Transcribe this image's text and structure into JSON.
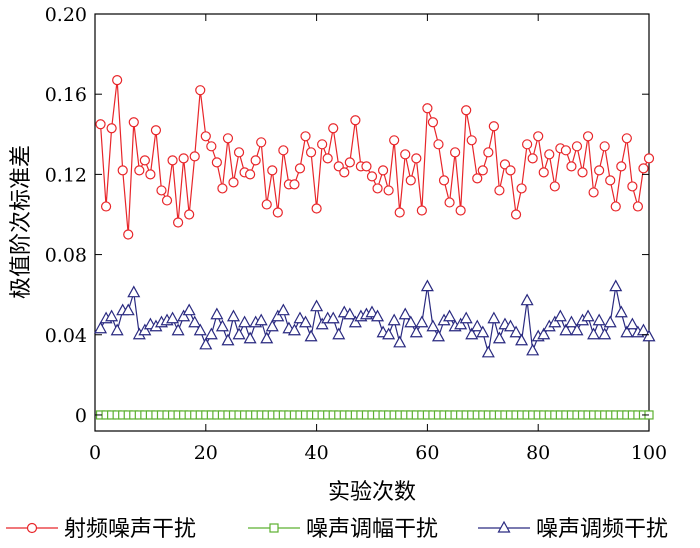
{
  "chart_data": {
    "type": "line",
    "title": "",
    "xlabel": "实验次数",
    "ylabel": "极值阶次标准差",
    "xlim": [
      0,
      100
    ],
    "ylim": [
      -0.008,
      0.2
    ],
    "grid": false,
    "legend_position": "bottom",
    "x_ticks": [
      0,
      20,
      40,
      60,
      80,
      100
    ],
    "y_ticks": [
      0,
      0.04,
      0.08,
      0.12,
      0.16,
      0.2
    ],
    "x_tick_labels": [
      "0",
      "20",
      "40",
      "60",
      "80",
      "100"
    ],
    "y_tick_labels": [
      "0",
      "0.04",
      "0.08",
      "0.12",
      "0.16",
      "0.20"
    ],
    "x": [
      1,
      2,
      3,
      4,
      5,
      6,
      7,
      8,
      9,
      10,
      11,
      12,
      13,
      14,
      15,
      16,
      17,
      18,
      19,
      20,
      21,
      22,
      23,
      24,
      25,
      26,
      27,
      28,
      29,
      30,
      31,
      32,
      33,
      34,
      35,
      36,
      37,
      38,
      39,
      40,
      41,
      42,
      43,
      44,
      45,
      46,
      47,
      48,
      49,
      50,
      51,
      52,
      53,
      54,
      55,
      56,
      57,
      58,
      59,
      60,
      61,
      62,
      63,
      64,
      65,
      66,
      67,
      68,
      69,
      70,
      71,
      72,
      73,
      74,
      75,
      76,
      77,
      78,
      79,
      80,
      81,
      82,
      83,
      84,
      85,
      86,
      87,
      88,
      89,
      90,
      91,
      92,
      93,
      94,
      95,
      96,
      97,
      98,
      99,
      100
    ],
    "series": [
      {
        "name": "射频噪声干扰",
        "color": "#e8262a",
        "marker": "circle",
        "values": [
          0.145,
          0.104,
          0.143,
          0.167,
          0.122,
          0.09,
          0.146,
          0.122,
          0.127,
          0.12,
          0.142,
          0.112,
          0.107,
          0.127,
          0.096,
          0.128,
          0.1,
          0.129,
          0.162,
          0.139,
          0.134,
          0.126,
          0.113,
          0.138,
          0.116,
          0.131,
          0.121,
          0.12,
          0.127,
          0.136,
          0.105,
          0.122,
          0.101,
          0.132,
          0.115,
          0.115,
          0.123,
          0.139,
          0.131,
          0.103,
          0.135,
          0.128,
          0.143,
          0.124,
          0.121,
          0.126,
          0.147,
          0.124,
          0.124,
          0.119,
          0.113,
          0.122,
          0.112,
          0.137,
          0.101,
          0.13,
          0.117,
          0.128,
          0.102,
          0.153,
          0.146,
          0.135,
          0.117,
          0.106,
          0.131,
          0.102,
          0.152,
          0.137,
          0.118,
          0.122,
          0.131,
          0.144,
          0.112,
          0.125,
          0.122,
          0.1,
          0.113,
          0.135,
          0.128,
          0.139,
          0.121,
          0.13,
          0.114,
          0.133,
          0.132,
          0.124,
          0.134,
          0.121,
          0.139,
          0.111,
          0.122,
          0.134,
          0.117,
          0.104,
          0.124,
          0.138,
          0.114,
          0.104,
          0.123,
          0.128
        ]
      },
      {
        "name": "噪声调幅干扰",
        "color": "#5cb030",
        "marker": "square",
        "values": [
          0,
          0,
          0,
          0,
          0,
          0,
          0,
          0,
          0,
          0,
          0,
          0,
          0,
          0,
          0,
          0,
          0,
          0,
          0,
          0,
          0,
          0,
          0,
          0,
          0,
          0,
          0,
          0,
          0,
          0,
          0,
          0,
          0,
          0,
          0,
          0,
          0,
          0,
          0,
          0,
          0,
          0,
          0,
          0,
          0,
          0,
          0,
          0,
          0,
          0,
          0,
          0,
          0,
          0,
          0,
          0,
          0,
          0,
          0,
          0,
          0,
          0,
          0,
          0,
          0,
          0,
          0,
          0,
          0,
          0,
          0,
          0,
          0,
          0,
          0,
          0,
          0,
          0,
          0,
          0,
          0,
          0,
          0,
          0,
          0,
          0,
          0,
          0,
          0,
          0,
          0,
          0,
          0,
          0,
          0,
          0,
          0,
          0,
          0,
          0
        ]
      },
      {
        "name": "噪声调频干扰",
        "color": "#2a2a80",
        "marker": "triangle",
        "values": [
          0.043,
          0.048,
          0.049,
          0.042,
          0.052,
          0.052,
          0.061,
          0.04,
          0.042,
          0.045,
          0.044,
          0.046,
          0.047,
          0.048,
          0.042,
          0.049,
          0.052,
          0.046,
          0.042,
          0.035,
          0.04,
          0.05,
          0.044,
          0.037,
          0.049,
          0.04,
          0.046,
          0.038,
          0.046,
          0.047,
          0.038,
          0.044,
          0.049,
          0.052,
          0.043,
          0.042,
          0.048,
          0.046,
          0.039,
          0.054,
          0.045,
          0.048,
          0.048,
          0.04,
          0.051,
          0.05,
          0.046,
          0.049,
          0.05,
          0.051,
          0.049,
          0.041,
          0.04,
          0.047,
          0.036,
          0.05,
          0.046,
          0.041,
          0.046,
          0.064,
          0.044,
          0.039,
          0.047,
          0.049,
          0.044,
          0.045,
          0.048,
          0.04,
          0.044,
          0.041,
          0.031,
          0.048,
          0.038,
          0.045,
          0.044,
          0.041,
          0.037,
          0.057,
          0.032,
          0.039,
          0.04,
          0.044,
          0.046,
          0.049,
          0.042,
          0.046,
          0.042,
          0.047,
          0.049,
          0.04,
          0.047,
          0.04,
          0.046,
          0.064,
          0.051,
          0.041,
          0.045,
          0.041,
          0.042,
          0.039
        ]
      }
    ]
  }
}
